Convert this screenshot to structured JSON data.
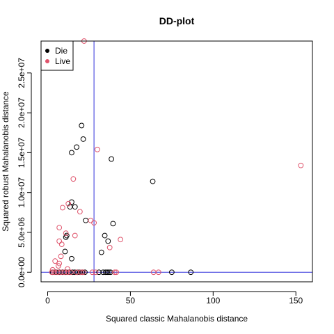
{
  "chart_data": {
    "type": "scatter",
    "title": "DD-plot",
    "xlabel": "Squared classic Mahalanobis distance",
    "ylabel": "Squared robust Mahalanobis distance",
    "xlim": [
      -4,
      160
    ],
    "ylim": [
      -1200000,
      29000000
    ],
    "x_ticks": [
      {
        "value": 0,
        "label": "0"
      },
      {
        "value": 50,
        "label": "50"
      },
      {
        "value": 100,
        "label": "100"
      },
      {
        "value": 150,
        "label": "150"
      }
    ],
    "y_ticks": [
      {
        "value": 0,
        "label": "0.0e+00"
      },
      {
        "value": 5000000,
        "label": "5.0e+06"
      },
      {
        "value": 10000000,
        "label": "1.0e+07"
      },
      {
        "value": 15000000,
        "label": "1.5e+07"
      },
      {
        "value": 20000000,
        "label": "2.0e+07"
      },
      {
        "value": 25000000,
        "label": "2.5e+07"
      }
    ],
    "cutoff_lines": {
      "x": 28.0,
      "y": 0,
      "color": "#2E2EDB"
    },
    "legend": {
      "position": "top-left",
      "entries": [
        {
          "label": "Die",
          "color": "#000000"
        },
        {
          "label": "Live",
          "color": "#DF536B"
        }
      ]
    },
    "series": [
      {
        "name": "Die",
        "color": "#000000",
        "points": [
          [
            20.5,
            18400000
          ],
          [
            21.5,
            16700000
          ],
          [
            17.5,
            15700000
          ],
          [
            38.5,
            14200000
          ],
          [
            14.5,
            15000000
          ],
          [
            63.5,
            11400000
          ],
          [
            14.5,
            8800000
          ],
          [
            13.5,
            8200000
          ],
          [
            16.5,
            8200000
          ],
          [
            23.0,
            6500000
          ],
          [
            39.5,
            6100000
          ],
          [
            11.5,
            4600000
          ],
          [
            11.0,
            4400000
          ],
          [
            34.5,
            4600000
          ],
          [
            36.5,
            3900000
          ],
          [
            10.5,
            2600000
          ],
          [
            32.5,
            2500000
          ],
          [
            14.5,
            1700000
          ],
          [
            3.0,
            0
          ],
          [
            5.0,
            0
          ],
          [
            7.0,
            0
          ],
          [
            9.0,
            0
          ],
          [
            11.0,
            0
          ],
          [
            13.0,
            0
          ],
          [
            15.0,
            0
          ],
          [
            16.5,
            0
          ],
          [
            18.0,
            0
          ],
          [
            19.5,
            0
          ],
          [
            21.0,
            0
          ],
          [
            22.5,
            0
          ],
          [
            31.0,
            0
          ],
          [
            33.5,
            0
          ],
          [
            35.0,
            0
          ],
          [
            36.0,
            0
          ],
          [
            37.0,
            0
          ],
          [
            38.0,
            0
          ],
          [
            75.0,
            0
          ],
          [
            86.5,
            0
          ]
        ]
      },
      {
        "name": "Live",
        "color": "#DF536B",
        "points": [
          [
            22.0,
            29000000
          ],
          [
            30.0,
            15400000
          ],
          [
            153.0,
            13400000
          ],
          [
            15.5,
            11700000
          ],
          [
            12.5,
            8600000
          ],
          [
            9.0,
            8100000
          ],
          [
            19.5,
            7600000
          ],
          [
            26.0,
            6500000
          ],
          [
            28.0,
            6200000
          ],
          [
            7.0,
            5600000
          ],
          [
            11.0,
            4900000
          ],
          [
            16.5,
            4600000
          ],
          [
            44.0,
            4100000
          ],
          [
            7.0,
            3900000
          ],
          [
            8.5,
            3500000
          ],
          [
            37.5,
            3100000
          ],
          [
            8.0,
            2000000
          ],
          [
            4.5,
            1400000
          ],
          [
            7.0,
            1100000
          ],
          [
            6.5,
            800000
          ],
          [
            12.0,
            400000
          ],
          [
            3.0,
            300000
          ],
          [
            2.5,
            0
          ],
          [
            4.0,
            0
          ],
          [
            6.0,
            0
          ],
          [
            8.0,
            0
          ],
          [
            10.0,
            0
          ],
          [
            12.0,
            0
          ],
          [
            14.0,
            0
          ],
          [
            17.5,
            0
          ],
          [
            20.0,
            0
          ],
          [
            21.5,
            0
          ],
          [
            27.0,
            0
          ],
          [
            29.0,
            0
          ],
          [
            40.5,
            0
          ],
          [
            41.5,
            0
          ],
          [
            64.0,
            0
          ],
          [
            67.0,
            0
          ]
        ]
      }
    ]
  }
}
